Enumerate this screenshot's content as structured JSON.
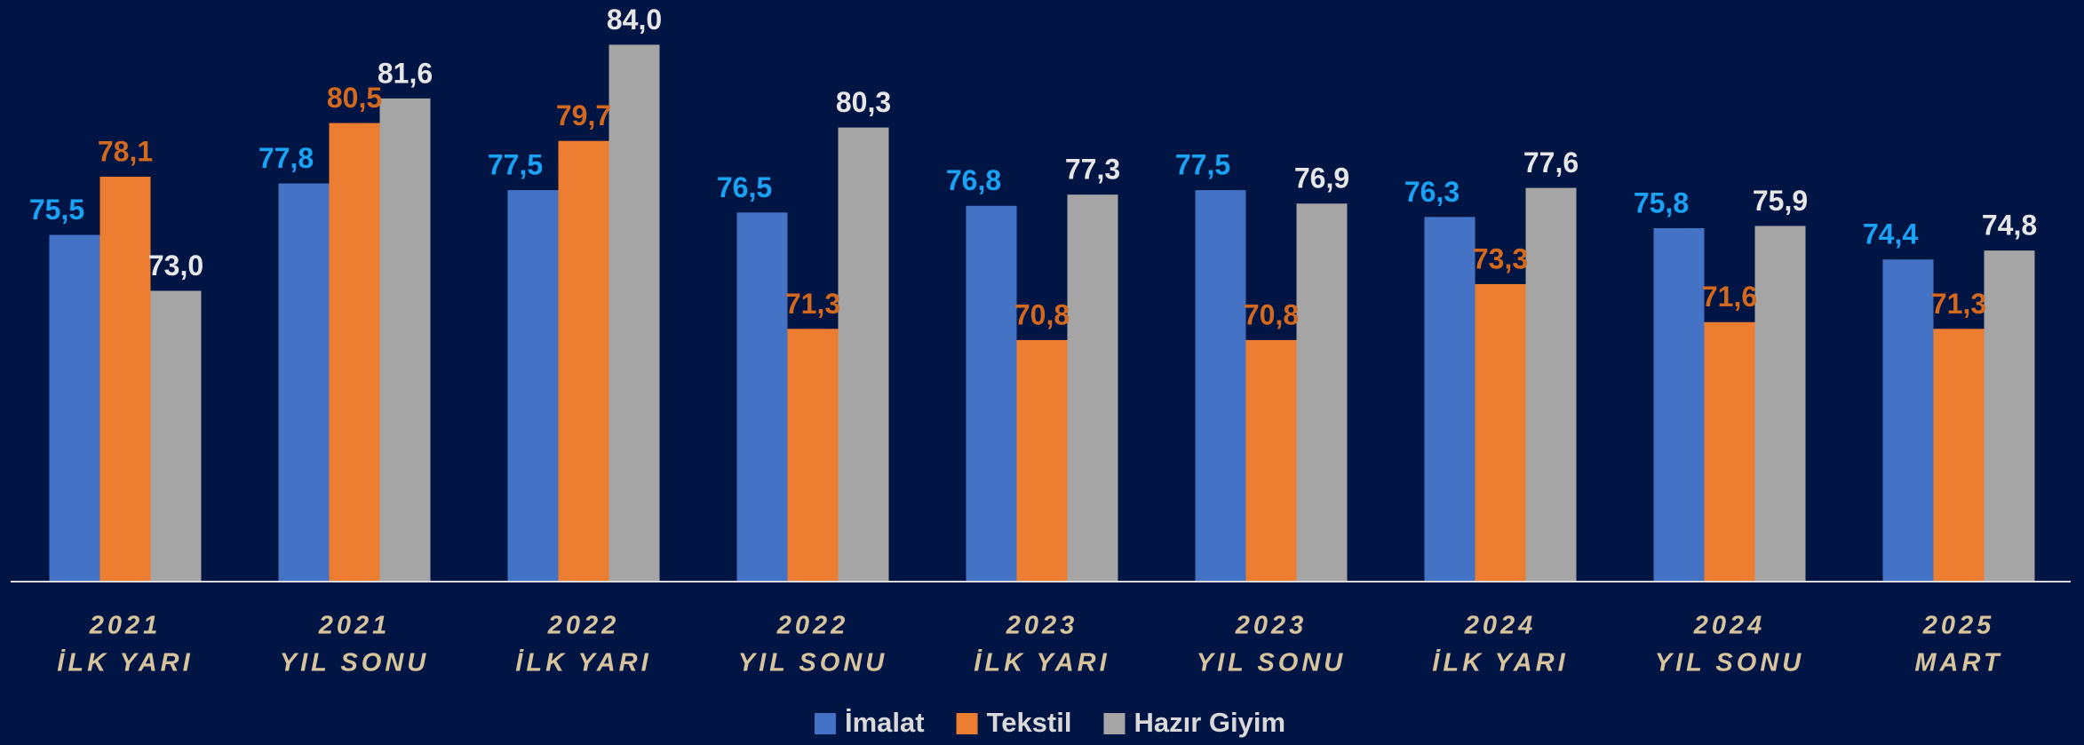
{
  "chart_data": {
    "type": "bar",
    "categories": [
      [
        "2021",
        "İLK YARI"
      ],
      [
        "2021",
        "YIL SONU"
      ],
      [
        "2022",
        "İLK YARI"
      ],
      [
        "2022",
        "YIL SONU"
      ],
      [
        "2023",
        "İLK YARI"
      ],
      [
        "2023",
        "YIL SONU"
      ],
      [
        "2024",
        "İLK YARI"
      ],
      [
        "2024",
        "YIL SONU"
      ],
      [
        "2025",
        "MART"
      ]
    ],
    "series": [
      {
        "name": "İmalat",
        "color": "#4472c4",
        "label_color": "#1aa3f5",
        "values": [
          75.5,
          77.8,
          77.5,
          76.5,
          76.8,
          77.5,
          76.3,
          75.8,
          74.4
        ],
        "value_labels": [
          "75,5",
          "77,8",
          "77,5",
          "76,5",
          "76,8",
          "77,5",
          "76,3",
          "75,8",
          "74,4"
        ]
      },
      {
        "name": "Tekstil",
        "color": "#ed7d31",
        "label_color": "#d2691e",
        "values": [
          78.1,
          80.5,
          79.7,
          71.3,
          70.8,
          70.8,
          73.3,
          71.6,
          71.3
        ],
        "value_labels": [
          "78,1",
          "80,5",
          "79,7",
          "71,3",
          "70,8",
          "70,8",
          "73,3",
          "71,6",
          "71,3"
        ]
      },
      {
        "name": "Hazır Giyim",
        "color": "#a5a5a5",
        "label_color": "#e6e6e6",
        "values": [
          73.0,
          81.6,
          84.0,
          80.3,
          77.3,
          76.9,
          77.6,
          75.9,
          74.8
        ],
        "value_labels": [
          "73,0",
          "81,6",
          "84,0",
          "80,3",
          "77,3",
          "76,9",
          "77,6",
          "75,9",
          "74,8"
        ]
      }
    ],
    "ylim": [
      60,
      86
    ]
  }
}
